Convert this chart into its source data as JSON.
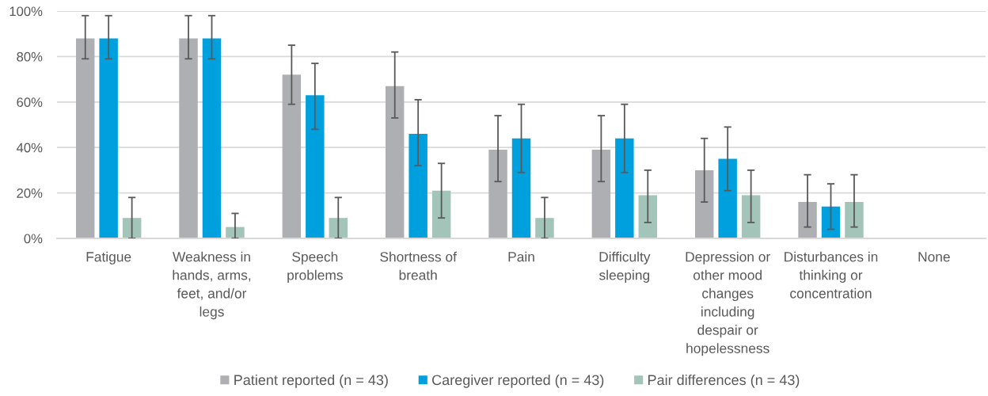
{
  "chart_data": {
    "type": "bar",
    "categories": [
      "Fatigue",
      "Weakness in hands, arms, feet, and/or legs",
      "Speech problems",
      "Shortness of breath",
      "Pain",
      "Difficulty sleeping",
      "Depression or other mood changes including despair or hopelessness",
      "Disturbances in thinking or concentration",
      "None"
    ],
    "series": [
      {
        "name": "Patient reported (n = 43)",
        "color": "#aeafb2",
        "values": [
          88,
          88,
          72,
          67,
          39,
          39,
          30,
          16,
          null
        ],
        "errors": [
          [
            79,
            98
          ],
          [
            79,
            98
          ],
          [
            59,
            85
          ],
          [
            53,
            82
          ],
          [
            25,
            54
          ],
          [
            25,
            54
          ],
          [
            16,
            44
          ],
          [
            5,
            28
          ],
          null
        ]
      },
      {
        "name": "Caregiver reported (n = 43)",
        "color": "#00a0de",
        "values": [
          88,
          88,
          63,
          46,
          44,
          44,
          35,
          14,
          null
        ],
        "errors": [
          [
            79,
            98
          ],
          [
            79,
            98
          ],
          [
            48,
            77
          ],
          [
            32,
            61
          ],
          [
            29,
            59
          ],
          [
            29,
            59
          ],
          [
            21,
            49
          ],
          [
            4,
            24
          ],
          null
        ]
      },
      {
        "name": "Pair differences (n = 43)",
        "color": "#a2c4b9",
        "values": [
          9,
          5,
          9,
          21,
          9,
          19,
          19,
          16,
          null
        ],
        "errors": [
          [
            0,
            18
          ],
          [
            0,
            11
          ],
          [
            0,
            18
          ],
          [
            9,
            33
          ],
          [
            0,
            18
          ],
          [
            7,
            30
          ],
          [
            7,
            30
          ],
          [
            5,
            28
          ],
          null
        ]
      }
    ],
    "ylim": [
      0,
      100
    ],
    "yticks": [
      {
        "value": 0,
        "label": "0%"
      },
      {
        "value": 20,
        "label": "20%"
      },
      {
        "value": 40,
        "label": "40%"
      },
      {
        "value": 60,
        "label": "60%"
      },
      {
        "value": 80,
        "label": "80%"
      },
      {
        "value": 100,
        "label": "100%"
      }
    ],
    "grid": "y",
    "legend": "bottom"
  }
}
